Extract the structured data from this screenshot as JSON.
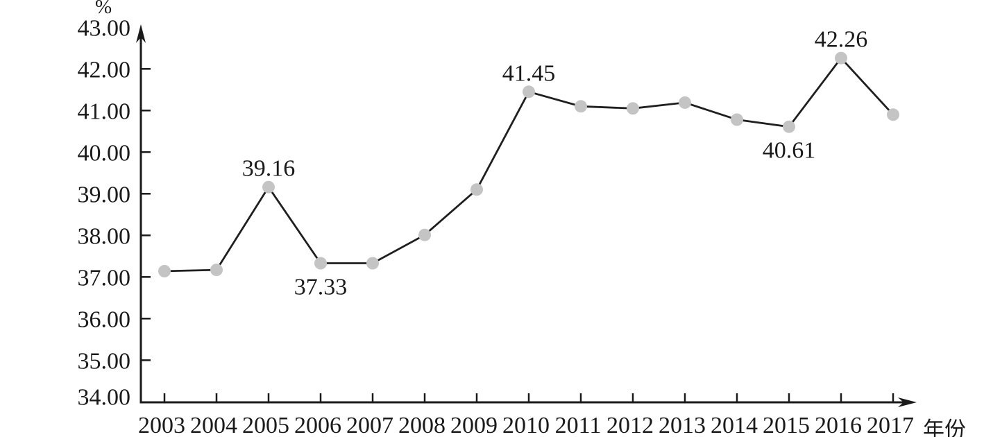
{
  "chart_data": {
    "type": "line",
    "title": "",
    "ylabel": "%",
    "xlabel": "年份",
    "categories": [
      "2003",
      "2004",
      "2005",
      "2006",
      "2007",
      "2008",
      "2009",
      "2010",
      "2011",
      "2012",
      "2013",
      "2014",
      "2015",
      "2016",
      "2017"
    ],
    "series": [
      {
        "name": "percentage",
        "values": [
          37.14,
          37.17,
          39.16,
          37.33,
          37.33,
          38.01,
          39.1,
          41.45,
          41.1,
          41.05,
          41.19,
          40.78,
          40.61,
          42.26,
          40.9
        ]
      }
    ],
    "labeled_points": [
      {
        "category": "2005",
        "label": "39.16",
        "placement": "above"
      },
      {
        "category": "2006",
        "label": "37.33",
        "placement": "below"
      },
      {
        "category": "2010",
        "label": "41.45",
        "placement": "above"
      },
      {
        "category": "2015",
        "label": "40.61",
        "placement": "below"
      },
      {
        "category": "2016",
        "label": "42.26",
        "placement": "above"
      }
    ],
    "ylim": [
      34,
      43
    ],
    "ytick_step": 1,
    "ytick_labels": [
      "34.00",
      "35.00",
      "36.00",
      "37.00",
      "38.00",
      "39.00",
      "40.00",
      "41.00",
      "42.00",
      "43.00"
    ],
    "grid": false,
    "legend": "none",
    "marker_shape": "circle",
    "colors": {
      "line": "#1f1f1f",
      "marker": "#c4c4c4",
      "axis": "#1a1a1a",
      "text": "#1a1a1a",
      "background": "#ffffff"
    }
  }
}
